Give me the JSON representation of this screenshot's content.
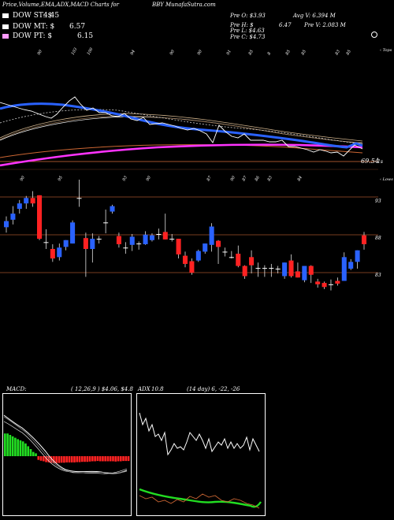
{
  "header": {
    "left_title": "Price,Volume,EMA,ADX,MACD Charts for",
    "center_title": "BBY MunafaSutra.com"
  },
  "dow": {
    "st": {
      "label": "DOW ST: $",
      "value": "4.45",
      "color": "#ffffff"
    },
    "mt": {
      "label": "DOW MT: $",
      "value": "6.57",
      "color": "#ffffff"
    },
    "pt": {
      "label": "DOW PT: $",
      "value": "6.15",
      "color": "#ff99ff"
    }
  },
  "quote": {
    "open": "Pre O: $3.93",
    "avgvol": "Avg V: 6.394 M",
    "high": "Pre H: $",
    "high_val": "6.47",
    "vol": "Pre V: 2.083 M",
    "low": "Pre L: $4.63",
    "close": "Pre C: $4.73"
  },
  "top_panel": {
    "top_labels": [
      "90",
      "103",
      "100",
      "94",
      "90",
      "90",
      "91",
      "85",
      "8",
      "85",
      "85",
      "83",
      "85"
    ],
    "right_label": "‹ Tops",
    "price_label": "69.54",
    "right_tick": "1s"
  },
  "candle_panel": {
    "top_labels": [
      "90",
      "95",
      "93",
      "90",
      "87",
      "90",
      "87",
      "86",
      "83",
      "84"
    ],
    "right_label": "‹ Lows",
    "price_ticks": [
      "93",
      "88",
      "83"
    ]
  },
  "macd": {
    "title": "MACD:",
    "values": "( 12,26,9 ) $4.06, $4.8"
  },
  "adx": {
    "title": "ADX",
    "title_values": "10.8",
    "values": "(14 day) 6, -22, -26"
  },
  "chart_data": {
    "type": "candlestick",
    "title": "Price,Volume,EMA,ADX,MACD Charts for BBY MunafaSutra.com",
    "ema_overlay_note": "EMA lines shown in top panel",
    "price_axis_ticks": [
      93,
      88,
      83
    ],
    "ylim": [
      81,
      97
    ],
    "candles": [
      {
        "o": 90.0,
        "c": 90.9,
        "h": 91.6,
        "l": 89.2
      },
      {
        "o": 91.1,
        "c": 92.0,
        "h": 93.1,
        "l": 90.4
      },
      {
        "o": 92.7,
        "c": 93.5,
        "h": 94.0,
        "l": 92.0
      },
      {
        "o": 93.5,
        "c": 94.3,
        "h": 94.6,
        "l": 92.7
      },
      {
        "o": 94.3,
        "c": 93.5,
        "h": 95.3,
        "l": 93.0
      },
      {
        "o": 94.7,
        "c": 88.3,
        "h": 94.7,
        "l": 88.1
      },
      {
        "o": 87.8,
        "c": 87.8,
        "h": 89.7,
        "l": 86.8
      },
      {
        "o": 86.8,
        "c": 85.4,
        "h": 87.5,
        "l": 84.9
      },
      {
        "o": 85.6,
        "c": 87.0,
        "h": 87.6,
        "l": 85.1
      },
      {
        "o": 87.1,
        "c": 88.1,
        "h": 88.1,
        "l": 86.6
      },
      {
        "o": 87.6,
        "c": 90.7,
        "h": 91.0,
        "l": 87.6
      },
      {
        "o": 94.3,
        "c": 94.3,
        "h": 97.0,
        "l": 93.0
      },
      {
        "o": 88.4,
        "c": 86.8,
        "h": 89.2,
        "l": 82.7
      },
      {
        "o": 86.8,
        "c": 88.3,
        "h": 89.1,
        "l": 84.8
      },
      {
        "o": 88.3,
        "c": 88.3,
        "h": 88.7,
        "l": 87.6
      },
      {
        "o": 90.7,
        "c": 90.7,
        "h": 92.6,
        "l": 89.1
      },
      {
        "o": 92.3,
        "c": 93.1,
        "h": 93.3,
        "l": 92.0
      },
      {
        "o": 88.7,
        "c": 87.5,
        "h": 89.2,
        "l": 87.0
      },
      {
        "o": 87.0,
        "c": 87.0,
        "h": 87.8,
        "l": 86.1
      },
      {
        "o": 87.4,
        "c": 88.6,
        "h": 89.0,
        "l": 86.5
      },
      {
        "o": 87.6,
        "c": 87.6,
        "h": 87.9,
        "l": 86.7
      },
      {
        "o": 87.5,
        "c": 88.9,
        "h": 89.4,
        "l": 87.4
      },
      {
        "o": 88.1,
        "c": 88.8,
        "h": 89.1,
        "l": 87.9
      },
      {
        "o": 89.0,
        "c": 89.0,
        "h": 89.8,
        "l": 88.2
      },
      {
        "o": 89.3,
        "c": 88.2,
        "h": 92.0,
        "l": 88.2
      },
      {
        "o": 88.3,
        "c": 88.3,
        "h": 89.0,
        "l": 87.9
      },
      {
        "o": 88.3,
        "c": 86.0,
        "h": 88.3,
        "l": 85.4
      },
      {
        "o": 85.8,
        "c": 84.6,
        "h": 86.4,
        "l": 84.1
      },
      {
        "o": 85.0,
        "c": 83.3,
        "h": 85.4,
        "l": 83.0
      },
      {
        "o": 85.1,
        "c": 86.5,
        "h": 86.7,
        "l": 84.9
      },
      {
        "o": 86.4,
        "c": 87.6,
        "h": 87.6,
        "l": 86.1
      },
      {
        "o": 87.4,
        "c": 90.1,
        "h": 90.6,
        "l": 86.4
      },
      {
        "o": 88.0,
        "c": 87.1,
        "h": 88.1,
        "l": 84.6
      },
      {
        "o": 86.4,
        "c": 86.4,
        "h": 87.0,
        "l": 85.7
      },
      {
        "o": 85.6,
        "c": 85.6,
        "h": 86.5,
        "l": 85.4
      },
      {
        "o": 86.1,
        "c": 84.3,
        "h": 87.3,
        "l": 84.1
      },
      {
        "o": 84.3,
        "c": 82.8,
        "h": 84.4,
        "l": 82.4
      },
      {
        "o": 85.6,
        "c": 84.4,
        "h": 86.6,
        "l": 83.2
      },
      {
        "o": 84.0,
        "c": 84.0,
        "h": 84.8,
        "l": 82.7
      },
      {
        "o": 84.0,
        "c": 84.0,
        "h": 84.4,
        "l": 82.7
      },
      {
        "o": 84.0,
        "c": 84.0,
        "h": 84.6,
        "l": 82.7
      },
      {
        "o": 83.9,
        "c": 83.9,
        "h": 84.3,
        "l": 83.2
      },
      {
        "o": 82.8,
        "c": 84.8,
        "h": 84.8,
        "l": 82.4
      },
      {
        "o": 85.1,
        "c": 82.8,
        "h": 86.0,
        "l": 82.6
      },
      {
        "o": 83.5,
        "c": 82.6,
        "h": 84.8,
        "l": 82.6
      },
      {
        "o": 82.2,
        "c": 84.3,
        "h": 84.3,
        "l": 81.9
      },
      {
        "o": 84.3,
        "c": 83.0,
        "h": 84.4,
        "l": 81.8
      },
      {
        "o": 82.0,
        "c": 81.6,
        "h": 82.4,
        "l": 81.1
      },
      {
        "o": 81.8,
        "c": 81.2,
        "h": 82.0,
        "l": 80.9
      },
      {
        "o": 81.6,
        "c": 81.6,
        "h": 82.3,
        "l": 80.7
      },
      {
        "o": 82.1,
        "c": 81.7,
        "h": 82.6,
        "l": 81.4
      },
      {
        "o": 82.1,
        "c": 85.6,
        "h": 86.3,
        "l": 82.1
      },
      {
        "o": 83.9,
        "c": 84.9,
        "h": 85.3,
        "l": 83.7
      },
      {
        "o": 84.9,
        "c": 86.6,
        "h": 86.6,
        "l": 83.9
      },
      {
        "o": 88.8,
        "c": 87.5,
        "h": 89.3,
        "l": 86.7
      }
    ],
    "macd_histogram": [
      8,
      8,
      7.5,
      7,
      6.5,
      6,
      5.6,
      5.2,
      4.5,
      3.5,
      2.5,
      1.5,
      1.0,
      -1.3,
      -1.6,
      -1.8,
      -2.1,
      -2.2,
      -2.3,
      -2.4,
      -2.4,
      -2.4,
      -2.3,
      -2.3,
      -2.2,
      -2.2,
      -2.2,
      -2.2,
      -2.1,
      -2.1,
      -2.0,
      -2.0,
      -2.0,
      -1.9,
      -1.8,
      -1.8,
      -1.7,
      -1.8,
      -1.8,
      -1.8,
      -1.8,
      -1.8,
      -1.8,
      -1.9,
      -1.8,
      -1.8,
      -1.7,
      -1.7,
      -1.7
    ]
  }
}
